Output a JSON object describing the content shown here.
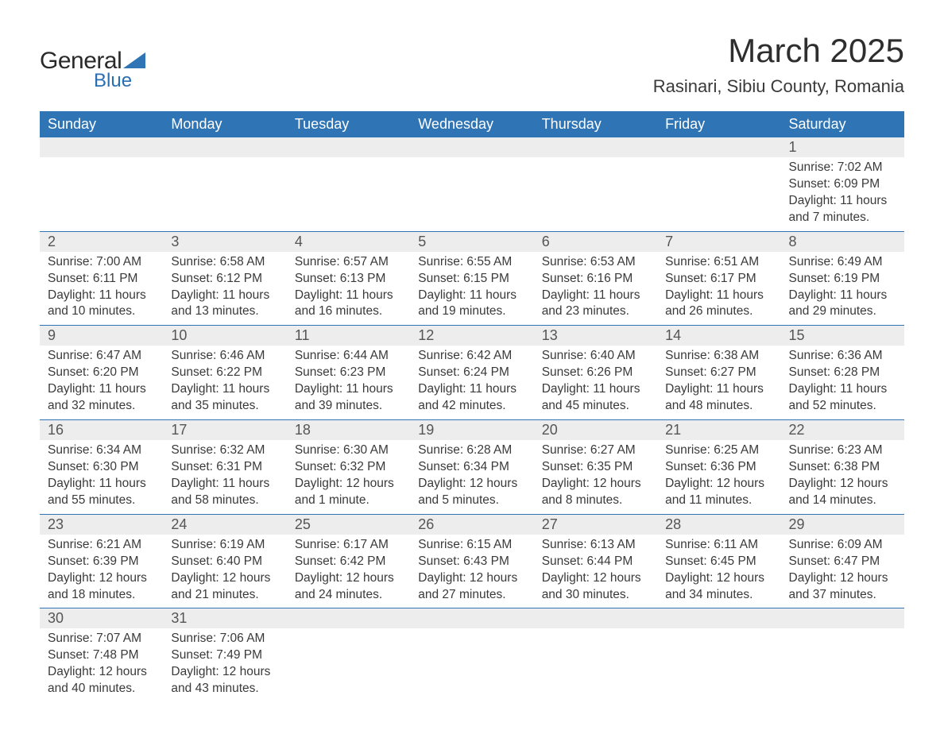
{
  "logo": {
    "text1": "General",
    "text2": "Blue",
    "icon_color": "#2f74b5"
  },
  "title": "March 2025",
  "location": "Rasinari, Sibiu County, Romania",
  "colors": {
    "header_bg": "#2f74b5",
    "header_text": "#ffffff",
    "daynum_bg": "#ededed",
    "text": "#3a3a3a",
    "border": "#2f74b5"
  },
  "daysOfWeek": [
    "Sunday",
    "Monday",
    "Tuesday",
    "Wednesday",
    "Thursday",
    "Friday",
    "Saturday"
  ],
  "weeks": [
    [
      null,
      null,
      null,
      null,
      null,
      null,
      {
        "n": "1",
        "sr": "Sunrise: 7:02 AM",
        "ss": "Sunset: 6:09 PM",
        "dl": "Daylight: 11 hours and 7 minutes."
      }
    ],
    [
      {
        "n": "2",
        "sr": "Sunrise: 7:00 AM",
        "ss": "Sunset: 6:11 PM",
        "dl": "Daylight: 11 hours and 10 minutes."
      },
      {
        "n": "3",
        "sr": "Sunrise: 6:58 AM",
        "ss": "Sunset: 6:12 PM",
        "dl": "Daylight: 11 hours and 13 minutes."
      },
      {
        "n": "4",
        "sr": "Sunrise: 6:57 AM",
        "ss": "Sunset: 6:13 PM",
        "dl": "Daylight: 11 hours and 16 minutes."
      },
      {
        "n": "5",
        "sr": "Sunrise: 6:55 AM",
        "ss": "Sunset: 6:15 PM",
        "dl": "Daylight: 11 hours and 19 minutes."
      },
      {
        "n": "6",
        "sr": "Sunrise: 6:53 AM",
        "ss": "Sunset: 6:16 PM",
        "dl": "Daylight: 11 hours and 23 minutes."
      },
      {
        "n": "7",
        "sr": "Sunrise: 6:51 AM",
        "ss": "Sunset: 6:17 PM",
        "dl": "Daylight: 11 hours and 26 minutes."
      },
      {
        "n": "8",
        "sr": "Sunrise: 6:49 AM",
        "ss": "Sunset: 6:19 PM",
        "dl": "Daylight: 11 hours and 29 minutes."
      }
    ],
    [
      {
        "n": "9",
        "sr": "Sunrise: 6:47 AM",
        "ss": "Sunset: 6:20 PM",
        "dl": "Daylight: 11 hours and 32 minutes."
      },
      {
        "n": "10",
        "sr": "Sunrise: 6:46 AM",
        "ss": "Sunset: 6:22 PM",
        "dl": "Daylight: 11 hours and 35 minutes."
      },
      {
        "n": "11",
        "sr": "Sunrise: 6:44 AM",
        "ss": "Sunset: 6:23 PM",
        "dl": "Daylight: 11 hours and 39 minutes."
      },
      {
        "n": "12",
        "sr": "Sunrise: 6:42 AM",
        "ss": "Sunset: 6:24 PM",
        "dl": "Daylight: 11 hours and 42 minutes."
      },
      {
        "n": "13",
        "sr": "Sunrise: 6:40 AM",
        "ss": "Sunset: 6:26 PM",
        "dl": "Daylight: 11 hours and 45 minutes."
      },
      {
        "n": "14",
        "sr": "Sunrise: 6:38 AM",
        "ss": "Sunset: 6:27 PM",
        "dl": "Daylight: 11 hours and 48 minutes."
      },
      {
        "n": "15",
        "sr": "Sunrise: 6:36 AM",
        "ss": "Sunset: 6:28 PM",
        "dl": "Daylight: 11 hours and 52 minutes."
      }
    ],
    [
      {
        "n": "16",
        "sr": "Sunrise: 6:34 AM",
        "ss": "Sunset: 6:30 PM",
        "dl": "Daylight: 11 hours and 55 minutes."
      },
      {
        "n": "17",
        "sr": "Sunrise: 6:32 AM",
        "ss": "Sunset: 6:31 PM",
        "dl": "Daylight: 11 hours and 58 minutes."
      },
      {
        "n": "18",
        "sr": "Sunrise: 6:30 AM",
        "ss": "Sunset: 6:32 PM",
        "dl": "Daylight: 12 hours and 1 minute."
      },
      {
        "n": "19",
        "sr": "Sunrise: 6:28 AM",
        "ss": "Sunset: 6:34 PM",
        "dl": "Daylight: 12 hours and 5 minutes."
      },
      {
        "n": "20",
        "sr": "Sunrise: 6:27 AM",
        "ss": "Sunset: 6:35 PM",
        "dl": "Daylight: 12 hours and 8 minutes."
      },
      {
        "n": "21",
        "sr": "Sunrise: 6:25 AM",
        "ss": "Sunset: 6:36 PM",
        "dl": "Daylight: 12 hours and 11 minutes."
      },
      {
        "n": "22",
        "sr": "Sunrise: 6:23 AM",
        "ss": "Sunset: 6:38 PM",
        "dl": "Daylight: 12 hours and 14 minutes."
      }
    ],
    [
      {
        "n": "23",
        "sr": "Sunrise: 6:21 AM",
        "ss": "Sunset: 6:39 PM",
        "dl": "Daylight: 12 hours and 18 minutes."
      },
      {
        "n": "24",
        "sr": "Sunrise: 6:19 AM",
        "ss": "Sunset: 6:40 PM",
        "dl": "Daylight: 12 hours and 21 minutes."
      },
      {
        "n": "25",
        "sr": "Sunrise: 6:17 AM",
        "ss": "Sunset: 6:42 PM",
        "dl": "Daylight: 12 hours and 24 minutes."
      },
      {
        "n": "26",
        "sr": "Sunrise: 6:15 AM",
        "ss": "Sunset: 6:43 PM",
        "dl": "Daylight: 12 hours and 27 minutes."
      },
      {
        "n": "27",
        "sr": "Sunrise: 6:13 AM",
        "ss": "Sunset: 6:44 PM",
        "dl": "Daylight: 12 hours and 30 minutes."
      },
      {
        "n": "28",
        "sr": "Sunrise: 6:11 AM",
        "ss": "Sunset: 6:45 PM",
        "dl": "Daylight: 12 hours and 34 minutes."
      },
      {
        "n": "29",
        "sr": "Sunrise: 6:09 AM",
        "ss": "Sunset: 6:47 PM",
        "dl": "Daylight: 12 hours and 37 minutes."
      }
    ],
    [
      {
        "n": "30",
        "sr": "Sunrise: 7:07 AM",
        "ss": "Sunset: 7:48 PM",
        "dl": "Daylight: 12 hours and 40 minutes."
      },
      {
        "n": "31",
        "sr": "Sunrise: 7:06 AM",
        "ss": "Sunset: 7:49 PM",
        "dl": "Daylight: 12 hours and 43 minutes."
      },
      null,
      null,
      null,
      null,
      null
    ]
  ]
}
